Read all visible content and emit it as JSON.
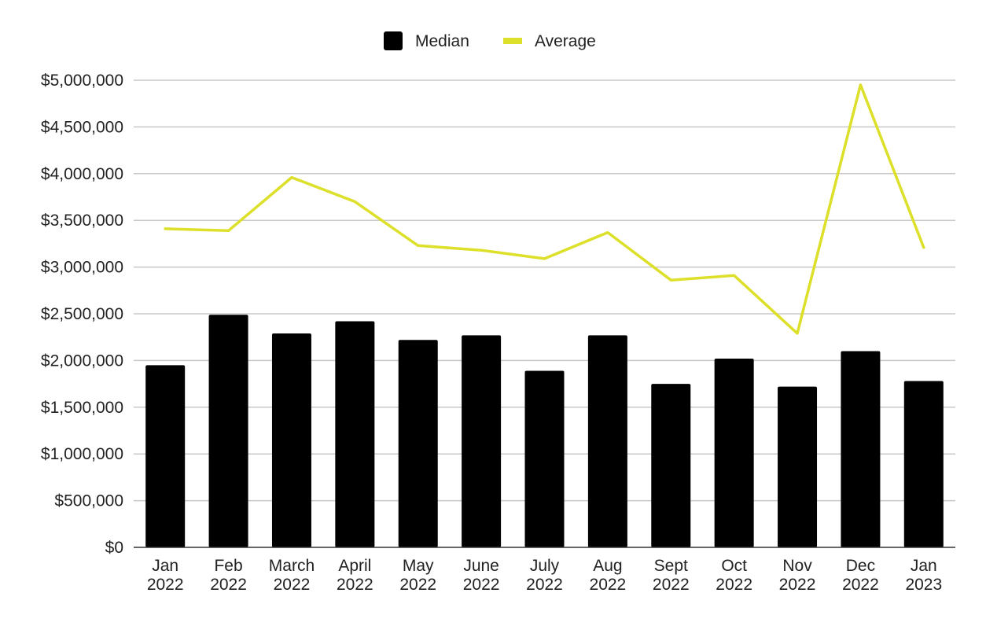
{
  "chart_data": {
    "type": "bar",
    "title": "",
    "xlabel": "",
    "ylabel": "",
    "categories": [
      [
        "Jan",
        "2022"
      ],
      [
        "Feb",
        "2022"
      ],
      [
        "March",
        "2022"
      ],
      [
        "April",
        "2022"
      ],
      [
        "May",
        "2022"
      ],
      [
        "June",
        "2022"
      ],
      [
        "July",
        "2022"
      ],
      [
        "Aug",
        "2022"
      ],
      [
        "Sept",
        "2022"
      ],
      [
        "Oct",
        "2022"
      ],
      [
        "Nov",
        "2022"
      ],
      [
        "Dec",
        "2022"
      ],
      [
        "Jan",
        "2023"
      ]
    ],
    "series": [
      {
        "name": "Median",
        "type": "bar",
        "color": "#000000",
        "values": [
          1950000,
          2490000,
          2290000,
          2420000,
          2220000,
          2270000,
          1890000,
          2270000,
          1750000,
          2020000,
          1720000,
          2100000,
          1780000
        ]
      },
      {
        "name": "Average",
        "type": "line",
        "color": "#dde02a",
        "values": [
          3410000,
          3390000,
          3960000,
          3700000,
          3230000,
          3180000,
          3090000,
          3370000,
          2860000,
          2910000,
          2290000,
          4950000,
          3210000
        ]
      }
    ],
    "ylim": [
      0,
      5000000
    ],
    "yticks": [
      0,
      500000,
      1000000,
      1500000,
      2000000,
      2500000,
      3000000,
      3500000,
      4000000,
      4500000,
      5000000
    ],
    "ytick_labels": [
      "$0",
      "$500,000",
      "$1,000,000",
      "$1,500,000",
      "$2,000,000",
      "$2,500,000",
      "$3,000,000",
      "$3,500,000",
      "$4,000,000",
      "$4,500,000",
      "$5,000,000"
    ],
    "grid": true,
    "legend_position": "top-center"
  }
}
